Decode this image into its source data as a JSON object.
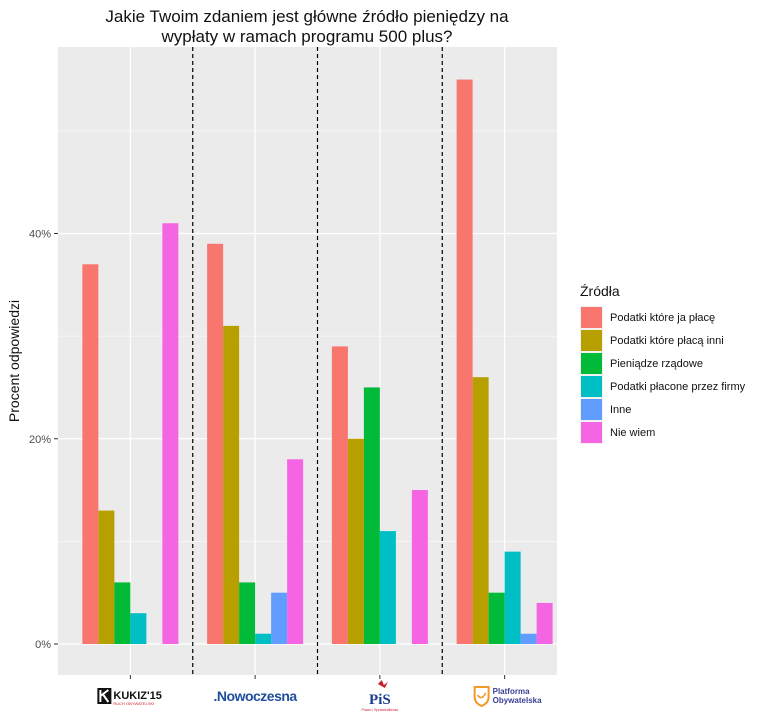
{
  "chart_data": {
    "type": "bar",
    "title": "Jakie Twoim zdaniem jest główne źródło pieniędzy na wypłaty w ramach programu 500 plus?",
    "title_lines": [
      "Jakie Twoim zdaniem jest główne źródło pieniędzy na",
      "wypłaty w ramach programu 500 plus?"
    ],
    "xlabel": "",
    "ylabel": "Procent odpowiedzi",
    "ylim": [
      0,
      58
    ],
    "yticks": [
      0,
      20,
      40
    ],
    "ytick_labels": [
      "0%",
      "20%",
      "40%"
    ],
    "grid": true,
    "legend_position": "right",
    "legend_title": "Źródła",
    "categories": [
      "Kukiz'15",
      "Nowoczesna",
      "PiS",
      "Platforma Obywatelska"
    ],
    "category_logos": {
      "kukiz": {
        "main": "KUKIZ'15",
        "sub": "RUCH OBYWATELSKI",
        "color": "#d21f26"
      },
      "nowoczesna": {
        "main": ".Nowoczesna",
        "color": "#1f4e9c"
      },
      "pis": {
        "main": "PiS",
        "sub": "Prawo i Sprawiedliwość",
        "color": "#1c3f8f"
      },
      "po": {
        "line1": "Platforma",
        "line2": "Obywatelska",
        "color": "#3a3f95",
        "accent": "#f29a27"
      }
    },
    "series": [
      {
        "name": "Podatki które ja płacę",
        "color": "#F8766D",
        "values": [
          37,
          39,
          29,
          55
        ]
      },
      {
        "name": "Podatki które płacą inni",
        "color": "#B79F00",
        "values": [
          13,
          31,
          20,
          26
        ]
      },
      {
        "name": "Pieniądze rządowe",
        "color": "#00BA38",
        "values": [
          6,
          6,
          25,
          5
        ]
      },
      {
        "name": "Podatki płacone przez firmy",
        "color": "#00BFC4",
        "values": [
          3,
          1,
          11,
          9
        ]
      },
      {
        "name": "Inne",
        "color": "#619CFF",
        "values": [
          0,
          5,
          0,
          1
        ]
      },
      {
        "name": "Nie wiem",
        "color": "#F564E3",
        "values": [
          41,
          18,
          15,
          4
        ]
      }
    ],
    "separators": "dashed vertical lines between groups",
    "panel_background": "#EBEBEB",
    "grid_color": "#ffffff"
  }
}
